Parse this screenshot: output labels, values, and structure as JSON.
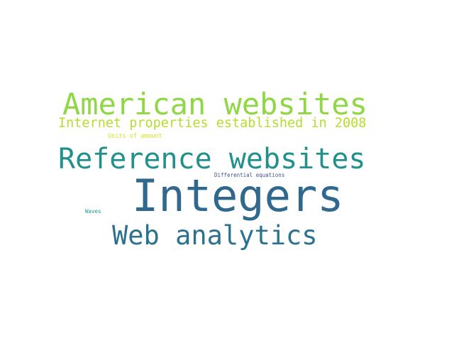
{
  "words": [
    {
      "text": "American websites",
      "color": "#8fd744"
    },
    {
      "text": "Internet properties established in 2008",
      "color": "#b5de2b"
    },
    {
      "text": "Units of amount",
      "color": "#d8e219"
    },
    {
      "text": "Reference websites",
      "color": "#21918c"
    },
    {
      "text": "Differential equations",
      "color": "#3b528b"
    },
    {
      "text": "Integers",
      "color": "#31688e"
    },
    {
      "text": "Waves",
      "color": "#1f9e89"
    },
    {
      "text": "Web analytics",
      "color": "#2c728e"
    }
  ]
}
